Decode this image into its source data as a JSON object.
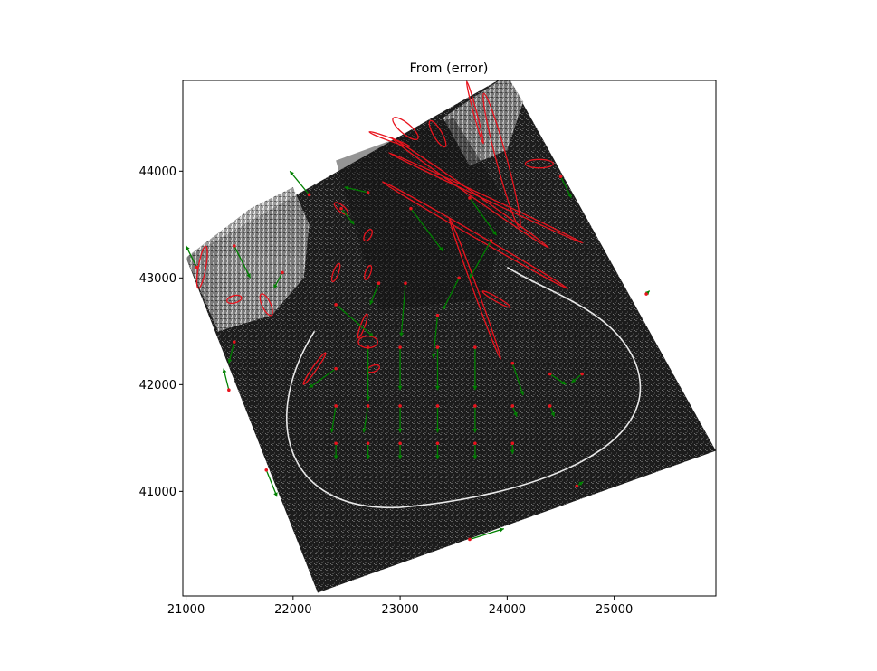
{
  "chart_data": {
    "type": "scatter",
    "title": "From (error)",
    "xlabel": "",
    "ylabel": "",
    "xlim": [
      20970,
      25950
    ],
    "ylim": [
      40020,
      44850
    ],
    "grid": false,
    "legend": "none",
    "x_ticks": [
      21000,
      22000,
      23000,
      24000,
      25000
    ],
    "y_ticks": [
      41000,
      42000,
      43000,
      44000
    ],
    "colors": {
      "vector": "#008000",
      "ellipse": "#e8141e",
      "frame": "#000000"
    },
    "background": {
      "description": "grayscale SAR backscatter image",
      "corners": [
        [
          22230,
          40050
        ],
        [
          25950,
          41380
        ],
        [
          24000,
          44900
        ],
        [
          21000,
          43190
        ]
      ]
    },
    "series": [
      {
        "kind": "vectors",
        "points": [
          {
            "x": 22150,
            "y": 43780,
            "dx": -180,
            "dy": 220
          },
          {
            "x": 22450,
            "y": 43650,
            "dx": 120,
            "dy": -150
          },
          {
            "x": 22700,
            "y": 43800,
            "dx": -220,
            "dy": 50
          },
          {
            "x": 21450,
            "y": 43300,
            "dx": 150,
            "dy": -300
          },
          {
            "x": 21100,
            "y": 43100,
            "dx": -100,
            "dy": 200
          },
          {
            "x": 21900,
            "y": 43050,
            "dx": -80,
            "dy": -150
          },
          {
            "x": 22400,
            "y": 42750,
            "dx": 350,
            "dy": -300
          },
          {
            "x": 22800,
            "y": 42950,
            "dx": -80,
            "dy": -200
          },
          {
            "x": 23050,
            "y": 42950,
            "dx": -40,
            "dy": -500
          },
          {
            "x": 23350,
            "y": 42650,
            "dx": -40,
            "dy": -400
          },
          {
            "x": 23550,
            "y": 43000,
            "dx": -150,
            "dy": -300
          },
          {
            "x": 23850,
            "y": 43350,
            "dx": -200,
            "dy": -350
          },
          {
            "x": 23100,
            "y": 43650,
            "dx": 300,
            "dy": -400
          },
          {
            "x": 23650,
            "y": 43750,
            "dx": 250,
            "dy": -350
          },
          {
            "x": 22400,
            "y": 42150,
            "dx": -250,
            "dy": -180
          },
          {
            "x": 22700,
            "y": 42350,
            "dx": 0,
            "dy": -500
          },
          {
            "x": 23000,
            "y": 42350,
            "dx": 0,
            "dy": -400
          },
          {
            "x": 23350,
            "y": 42350,
            "dx": 0,
            "dy": -400
          },
          {
            "x": 23700,
            "y": 42350,
            "dx": 0,
            "dy": -400
          },
          {
            "x": 24050,
            "y": 42200,
            "dx": 100,
            "dy": -300
          },
          {
            "x": 24400,
            "y": 42100,
            "dx": 150,
            "dy": -100
          },
          {
            "x": 24700,
            "y": 42100,
            "dx": -100,
            "dy": -80
          },
          {
            "x": 22400,
            "y": 41800,
            "dx": -40,
            "dy": -250
          },
          {
            "x": 22700,
            "y": 41800,
            "dx": -40,
            "dy": -250
          },
          {
            "x": 23000,
            "y": 41800,
            "dx": 0,
            "dy": -250
          },
          {
            "x": 23350,
            "y": 41800,
            "dx": 0,
            "dy": -250
          },
          {
            "x": 23700,
            "y": 41800,
            "dx": 0,
            "dy": -250
          },
          {
            "x": 24050,
            "y": 41800,
            "dx": 40,
            "dy": -100
          },
          {
            "x": 24400,
            "y": 41800,
            "dx": 40,
            "dy": -100
          },
          {
            "x": 22400,
            "y": 41450,
            "dx": 0,
            "dy": -150
          },
          {
            "x": 22700,
            "y": 41450,
            "dx": 0,
            "dy": -150
          },
          {
            "x": 23000,
            "y": 41450,
            "dx": 0,
            "dy": -150
          },
          {
            "x": 23350,
            "y": 41450,
            "dx": 0,
            "dy": -150
          },
          {
            "x": 23700,
            "y": 41450,
            "dx": 0,
            "dy": -150
          },
          {
            "x": 24050,
            "y": 41450,
            "dx": 0,
            "dy": -100
          },
          {
            "x": 21750,
            "y": 41200,
            "dx": 100,
            "dy": -250
          },
          {
            "x": 23650,
            "y": 40550,
            "dx": 320,
            "dy": 100
          },
          {
            "x": 21400,
            "y": 41950,
            "dx": -50,
            "dy": 200
          },
          {
            "x": 25300,
            "y": 42850,
            "dx": 30,
            "dy": 30
          },
          {
            "x": 24500,
            "y": 43950,
            "dx": 100,
            "dy": -200
          },
          {
            "x": 24650,
            "y": 41050,
            "dx": 60,
            "dy": 40
          },
          {
            "x": 21450,
            "y": 42400,
            "dx": -50,
            "dy": -200
          }
        ]
      },
      {
        "kind": "error_ellipses",
        "points": [
          {
            "x": 22450,
            "y": 43650,
            "rx": 80,
            "ry": 30,
            "angle_deg": -40
          },
          {
            "x": 22700,
            "y": 43400,
            "rx": 60,
            "ry": 30,
            "angle_deg": 60
          },
          {
            "x": 22400,
            "y": 43050,
            "rx": 90,
            "ry": 25,
            "angle_deg": 70
          },
          {
            "x": 22700,
            "y": 43050,
            "rx": 70,
            "ry": 25,
            "angle_deg": 70
          },
          {
            "x": 21150,
            "y": 43100,
            "rx": 200,
            "ry": 35,
            "angle_deg": 80
          },
          {
            "x": 21450,
            "y": 42800,
            "rx": 70,
            "ry": 35,
            "angle_deg": 15
          },
          {
            "x": 21750,
            "y": 42750,
            "rx": 110,
            "ry": 40,
            "angle_deg": -65
          },
          {
            "x": 22650,
            "y": 42550,
            "rx": 120,
            "ry": 20,
            "angle_deg": 70
          },
          {
            "x": 22700,
            "y": 42400,
            "rx": 90,
            "ry": 55,
            "angle_deg": 0
          },
          {
            "x": 22200,
            "y": 42150,
            "rx": 180,
            "ry": 20,
            "angle_deg": 55
          },
          {
            "x": 22750,
            "y": 42150,
            "rx": 60,
            "ry": 30,
            "angle_deg": 20
          },
          {
            "x": 23050,
            "y": 44400,
            "rx": 150,
            "ry": 50,
            "angle_deg": -40
          },
          {
            "x": 23350,
            "y": 44350,
            "rx": 140,
            "ry": 40,
            "angle_deg": -60
          },
          {
            "x": 24300,
            "y": 44070,
            "rx": 130,
            "ry": 40,
            "angle_deg": 0
          },
          {
            "x": 23650,
            "y": 43800,
            "rx": 900,
            "ry": 20,
            "angle_deg": -35
          },
          {
            "x": 23700,
            "y": 43400,
            "rx": 1000,
            "ry": 20,
            "angle_deg": -30
          },
          {
            "x": 23700,
            "y": 42900,
            "rx": 700,
            "ry": 20,
            "angle_deg": -70
          },
          {
            "x": 23800,
            "y": 43750,
            "rx": 1000,
            "ry": 15,
            "angle_deg": -25
          },
          {
            "x": 23950,
            "y": 44100,
            "rx": 650,
            "ry": 50,
            "angle_deg": -75
          },
          {
            "x": 23700,
            "y": 44550,
            "rx": 300,
            "ry": 15,
            "angle_deg": -75
          },
          {
            "x": 23900,
            "y": 42800,
            "rx": 150,
            "ry": 20,
            "angle_deg": -30
          },
          {
            "x": 22900,
            "y": 44300,
            "rx": 200,
            "ry": 15,
            "angle_deg": -20
          }
        ]
      }
    ]
  }
}
